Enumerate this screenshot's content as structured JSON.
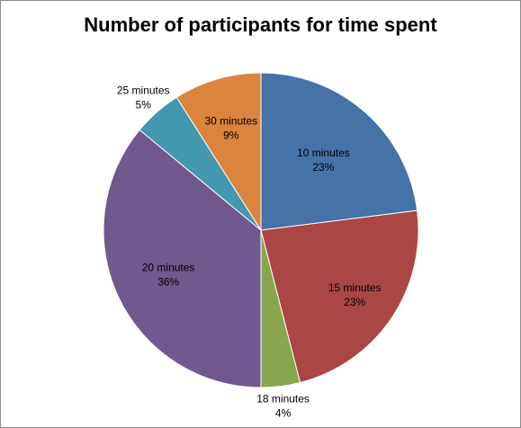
{
  "chart_data": {
    "type": "pie",
    "title": "Number of participants for time spent",
    "slices": [
      {
        "label": "10 minutes",
        "percent_label": "23%",
        "value": 23,
        "color": "#4572A7"
      },
      {
        "label": "15 minutes",
        "percent_label": "23%",
        "value": 23,
        "color": "#AA4643"
      },
      {
        "label": "18 minutes",
        "percent_label": "4%",
        "value": 4,
        "color": "#89A54E"
      },
      {
        "label": "20 minutes",
        "percent_label": "36%",
        "value": 36,
        "color": "#71588F"
      },
      {
        "label": "25 minutes",
        "percent_label": "5%",
        "value": 5,
        "color": "#4198AF"
      },
      {
        "label": "30 minutes",
        "percent_label": "9%",
        "value": 9,
        "color": "#DB843D"
      }
    ],
    "legend": "none"
  }
}
